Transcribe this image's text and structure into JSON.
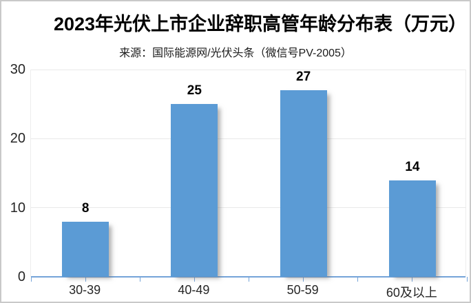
{
  "chart": {
    "title": "2023年光伏上市企业辞职高管年龄分布表（万元）",
    "source_note": "来源：国际能源网/光伏头条（微信号PV-2005）",
    "colors": {
      "bar_fill": "#5b9bd5",
      "axis_line": "#74a3d8",
      "gridline": "#e9e9e9",
      "title_text": "#000000",
      "label_text": "#262626",
      "background": "#ffffff"
    }
  },
  "chart_data": {
    "type": "bar",
    "title": "2023年光伏上市企业辞职高管年龄分布表（万元）",
    "subtitle": "来源：国际能源网/光伏头条（微信号PV-2005）",
    "categories": [
      "30-39",
      "40-49",
      "50-59",
      "60及以上"
    ],
    "values": [
      8,
      25,
      27,
      14
    ],
    "data_labels": [
      "8",
      "25",
      "27",
      "14"
    ],
    "xlabel": "",
    "ylabel": "",
    "ylim": [
      0,
      30
    ],
    "y_ticks": [
      0,
      10,
      20,
      30
    ],
    "grid": true,
    "legend": false,
    "legend_position": "none"
  }
}
